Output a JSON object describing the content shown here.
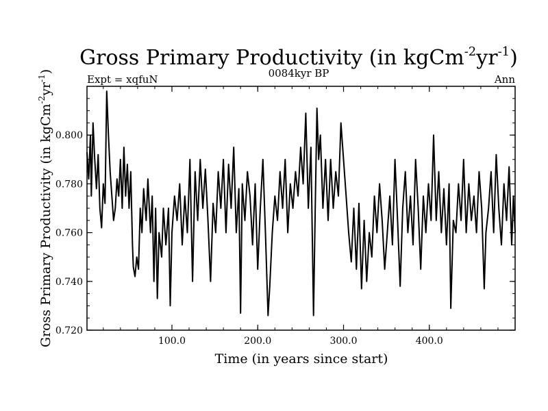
{
  "chart_data": {
    "type": "line",
    "title": {
      "main": "Gross Primary Productivity (in kgCm",
      "sup1": "-2",
      "mid": "yr",
      "sup2": "-1",
      "close": ")"
    },
    "subtitle_left": "Expt = xqfuN",
    "subtitle_center": "0084kyr BP",
    "subtitle_right": "Ann",
    "xlabel": "Time (in years since start)",
    "ylabel": {
      "main": "Gross Primary Productivity (in kgCm",
      "sup1": "-2",
      "mid": "yr",
      "sup2": "-1",
      "close": ")"
    },
    "xlim": [
      1,
      500
    ],
    "ylim": [
      0.72,
      0.82
    ],
    "x_ticks": [
      {
        "value": 100,
        "label": "100.0"
      },
      {
        "value": 200,
        "label": "200.0"
      },
      {
        "value": 300,
        "label": "300.0"
      },
      {
        "value": 400,
        "label": "400.0"
      }
    ],
    "y_ticks": [
      {
        "value": 0.72,
        "label": "0.720"
      },
      {
        "value": 0.74,
        "label": "0.740"
      },
      {
        "value": 0.76,
        "label": "0.760"
      },
      {
        "value": 0.78,
        "label": "0.780"
      },
      {
        "value": 0.8,
        "label": "0.800"
      }
    ],
    "series_keypoints": [
      [
        1,
        0.793
      ],
      [
        3,
        0.782
      ],
      [
        5,
        0.8
      ],
      [
        6,
        0.775
      ],
      [
        8,
        0.805
      ],
      [
        10,
        0.79
      ],
      [
        12,
        0.778
      ],
      [
        14,
        0.792
      ],
      [
        16,
        0.77
      ],
      [
        18,
        0.762
      ],
      [
        20,
        0.78
      ],
      [
        22,
        0.772
      ],
      [
        24,
        0.818
      ],
      [
        26,
        0.8
      ],
      [
        28,
        0.785
      ],
      [
        30,
        0.775
      ],
      [
        32,
        0.765
      ],
      [
        34,
        0.77
      ],
      [
        36,
        0.782
      ],
      [
        38,
        0.775
      ],
      [
        40,
        0.79
      ],
      [
        42,
        0.77
      ],
      [
        44,
        0.795
      ],
      [
        46,
        0.775
      ],
      [
        48,
        0.788
      ],
      [
        50,
        0.77
      ],
      [
        52,
        0.785
      ],
      [
        54,
        0.755
      ],
      [
        55,
        0.746
      ],
      [
        57,
        0.742
      ],
      [
        59,
        0.75
      ],
      [
        61,
        0.745
      ],
      [
        63,
        0.77
      ],
      [
        65,
        0.76
      ],
      [
        67,
        0.778
      ],
      [
        70,
        0.765
      ],
      [
        72,
        0.782
      ],
      [
        75,
        0.76
      ],
      [
        77,
        0.775
      ],
      [
        79,
        0.74
      ],
      [
        81,
        0.77
      ],
      [
        83,
        0.733
      ],
      [
        85,
        0.76
      ],
      [
        88,
        0.75
      ],
      [
        90,
        0.77
      ],
      [
        93,
        0.755
      ],
      [
        96,
        0.77
      ],
      [
        98,
        0.73
      ],
      [
        100,
        0.76
      ],
      [
        103,
        0.775
      ],
      [
        106,
        0.765
      ],
      [
        109,
        0.78
      ],
      [
        112,
        0.755
      ],
      [
        115,
        0.775
      ],
      [
        118,
        0.76
      ],
      [
        121,
        0.79
      ],
      [
        124,
        0.74
      ],
      [
        127,
        0.785
      ],
      [
        130,
        0.765
      ],
      [
        133,
        0.79
      ],
      [
        136,
        0.77
      ],
      [
        139,
        0.786
      ],
      [
        142,
        0.765
      ],
      [
        145,
        0.74
      ],
      [
        148,
        0.772
      ],
      [
        151,
        0.76
      ],
      [
        154,
        0.785
      ],
      [
        157,
        0.77
      ],
      [
        160,
        0.79
      ],
      [
        163,
        0.76
      ],
      [
        166,
        0.788
      ],
      [
        169,
        0.77
      ],
      [
        172,
        0.795
      ],
      [
        175,
        0.76
      ],
      [
        178,
        0.778
      ],
      [
        180,
        0.727
      ],
      [
        182,
        0.78
      ],
      [
        185,
        0.765
      ],
      [
        188,
        0.785
      ],
      [
        191,
        0.775
      ],
      [
        194,
        0.755
      ],
      [
        197,
        0.78
      ],
      [
        200,
        0.745
      ],
      [
        203,
        0.77
      ],
      [
        206,
        0.79
      ],
      [
        209,
        0.76
      ],
      [
        212,
        0.726
      ],
      [
        214,
        0.738
      ],
      [
        217,
        0.76
      ],
      [
        220,
        0.775
      ],
      [
        223,
        0.765
      ],
      [
        226,
        0.785
      ],
      [
        229,
        0.77
      ],
      [
        232,
        0.79
      ],
      [
        235,
        0.76
      ],
      [
        238,
        0.78
      ],
      [
        241,
        0.77
      ],
      [
        244,
        0.785
      ],
      [
        247,
        0.775
      ],
      [
        250,
        0.795
      ],
      [
        253,
        0.78
      ],
      [
        256,
        0.809
      ],
      [
        259,
        0.77
      ],
      [
        262,
        0.795
      ],
      [
        265,
        0.726
      ],
      [
        267,
        0.77
      ],
      [
        269,
        0.811
      ],
      [
        271,
        0.79
      ],
      [
        273,
        0.8
      ],
      [
        276,
        0.77
      ],
      [
        279,
        0.79
      ],
      [
        282,
        0.765
      ],
      [
        285,
        0.79
      ],
      [
        288,
        0.77
      ],
      [
        291,
        0.785
      ],
      [
        294,
        0.775
      ],
      [
        297,
        0.805
      ],
      [
        300,
        0.79
      ],
      [
        303,
        0.775
      ],
      [
        306,
        0.76
      ],
      [
        309,
        0.748
      ],
      [
        312,
        0.77
      ],
      [
        315,
        0.745
      ],
      [
        318,
        0.772
      ],
      [
        321,
        0.737
      ],
      [
        324,
        0.765
      ],
      [
        327,
        0.74
      ],
      [
        330,
        0.76
      ],
      [
        333,
        0.75
      ],
      [
        336,
        0.775
      ],
      [
        339,
        0.76
      ],
      [
        342,
        0.78
      ],
      [
        345,
        0.765
      ],
      [
        348,
        0.745
      ],
      [
        351,
        0.76
      ],
      [
        354,
        0.775
      ],
      [
        357,
        0.755
      ],
      [
        360,
        0.79
      ],
      [
        363,
        0.765
      ],
      [
        366,
        0.738
      ],
      [
        369,
        0.77
      ],
      [
        372,
        0.785
      ],
      [
        375,
        0.76
      ],
      [
        378,
        0.775
      ],
      [
        381,
        0.755
      ],
      [
        384,
        0.79
      ],
      [
        387,
        0.77
      ],
      [
        390,
        0.745
      ],
      [
        393,
        0.775
      ],
      [
        396,
        0.76
      ],
      [
        399,
        0.78
      ],
      [
        402,
        0.765
      ],
      [
        405,
        0.8
      ],
      [
        408,
        0.765
      ],
      [
        411,
        0.785
      ],
      [
        414,
        0.76
      ],
      [
        417,
        0.778
      ],
      [
        420,
        0.755
      ],
      [
        423,
        0.78
      ],
      [
        425,
        0.729
      ],
      [
        428,
        0.765
      ],
      [
        431,
        0.76
      ],
      [
        434,
        0.78
      ],
      [
        437,
        0.765
      ],
      [
        440,
        0.79
      ],
      [
        443,
        0.76
      ],
      [
        446,
        0.78
      ],
      [
        449,
        0.765
      ],
      [
        452,
        0.775
      ],
      [
        455,
        0.76
      ],
      [
        458,
        0.785
      ],
      [
        461,
        0.77
      ],
      [
        464,
        0.737
      ],
      [
        466,
        0.76
      ],
      [
        469,
        0.77
      ],
      [
        472,
        0.785
      ],
      [
        475,
        0.76
      ],
      [
        478,
        0.792
      ],
      [
        481,
        0.77
      ],
      [
        484,
        0.755
      ],
      [
        487,
        0.78
      ],
      [
        490,
        0.765
      ],
      [
        493,
        0.787
      ],
      [
        496,
        0.755
      ],
      [
        498,
        0.775
      ],
      [
        500,
        0.76
      ]
    ]
  }
}
